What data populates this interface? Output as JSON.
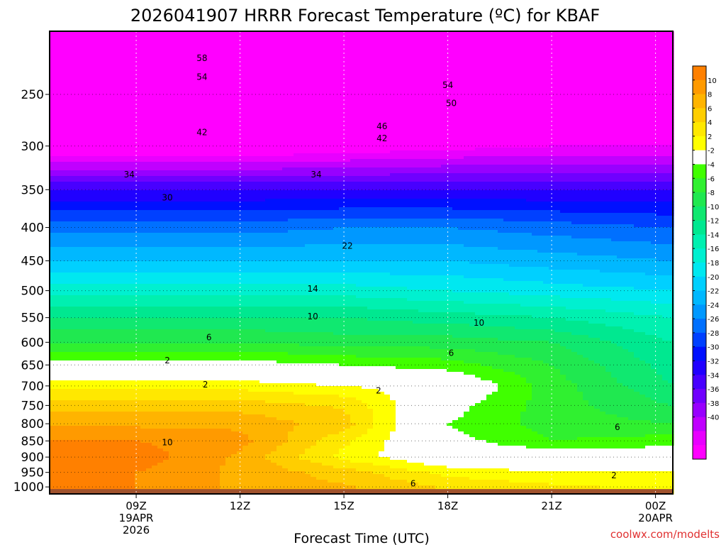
{
  "chart_data": {
    "type": "heatmap",
    "title": "2026041907 HRRR Forecast Temperature (ºC) for KBAF",
    "xlabel": "Forecast Time (UTC)",
    "ylabel": "",
    "credit": "coolwx.com/modelts",
    "x_range_hours": [
      6.5,
      24.5
    ],
    "y_range_hpa": [
      200,
      1025
    ],
    "y_scale": "log-pressure",
    "y_ticks": [
      250,
      300,
      350,
      400,
      450,
      500,
      550,
      600,
      650,
      700,
      750,
      800,
      850,
      900,
      950,
      1000
    ],
    "x_ticks": [
      {
        "hour": 9,
        "lines": [
          "09Z",
          "19APR",
          "2026"
        ]
      },
      {
        "hour": 12,
        "lines": [
          "12Z"
        ]
      },
      {
        "hour": 15,
        "lines": [
          "15Z"
        ]
      },
      {
        "hour": 18,
        "lines": [
          "18Z"
        ]
      },
      {
        "hour": 21,
        "lines": [
          "21Z"
        ]
      },
      {
        "hour": 24,
        "lines": [
          "00Z",
          "20APR"
        ]
      }
    ],
    "grid": "dotted",
    "colorbar": {
      "placement": "right",
      "labels": [
        "10",
        "8",
        "6",
        "4",
        "2",
        "-2",
        "-4",
        "-6",
        "-8",
        "-10",
        "-12",
        "-14",
        "-16",
        "-18",
        "-20",
        "-22",
        "-24",
        "-26",
        "-28",
        "-30",
        "-32",
        "-34",
        "-36",
        "-38",
        "-40"
      ],
      "colors": [
        "#ff8000",
        "#ff9a00",
        "#ffb400",
        "#ffce00",
        "#ffe800",
        "#ffff00",
        "#ffffff",
        "#40ff00",
        "#30f030",
        "#20e850",
        "#10e870",
        "#00e890",
        "#00f0b0",
        "#00f0d0",
        "#00e8f0",
        "#00d0ff",
        "#00b8ff",
        "#0098ff",
        "#0070ff",
        "#0040ff",
        "#0010ff",
        "#2000ff",
        "#4800ff",
        "#7000ff",
        "#9800ff",
        "#c000ff",
        "#e800ff",
        "#ff00ff"
      ]
    },
    "temperature_profiles_c": [
      {
        "hour": 6.5,
        "levels": [
          [
            220,
            -60
          ],
          [
            250,
            -56
          ],
          [
            300,
            -45
          ],
          [
            350,
            -32
          ],
          [
            400,
            -25
          ],
          [
            450,
            -20
          ],
          [
            500,
            -15
          ],
          [
            550,
            -10
          ],
          [
            600,
            -6
          ],
          [
            650,
            -1
          ],
          [
            700,
            3
          ],
          [
            750,
            6
          ],
          [
            800,
            8
          ],
          [
            850,
            10
          ],
          [
            900,
            11
          ],
          [
            950,
            10
          ],
          [
            1000,
            10
          ]
        ]
      },
      {
        "hour": 9,
        "levels": [
          [
            220,
            -60
          ],
          [
            250,
            -56
          ],
          [
            300,
            -45
          ],
          [
            350,
            -32
          ],
          [
            400,
            -25
          ],
          [
            450,
            -20
          ],
          [
            500,
            -15
          ],
          [
            550,
            -10
          ],
          [
            600,
            -6
          ],
          [
            650,
            -1
          ],
          [
            700,
            3
          ],
          [
            750,
            6
          ],
          [
            800,
            8
          ],
          [
            850,
            10
          ],
          [
            900,
            11
          ],
          [
            950,
            10
          ],
          [
            1000,
            10
          ]
        ]
      },
      {
        "hour": 12,
        "levels": [
          [
            220,
            -60
          ],
          [
            250,
            -55
          ],
          [
            300,
            -45
          ],
          [
            350,
            -32
          ],
          [
            400,
            -25
          ],
          [
            450,
            -20
          ],
          [
            500,
            -15
          ],
          [
            550,
            -10
          ],
          [
            600,
            -6
          ],
          [
            650,
            -1
          ],
          [
            700,
            3
          ],
          [
            750,
            6
          ],
          [
            800,
            8
          ],
          [
            850,
            9
          ],
          [
            900,
            8
          ],
          [
            950,
            8
          ],
          [
            1000,
            8
          ]
        ]
      },
      {
        "hour": 15,
        "levels": [
          [
            220,
            -60
          ],
          [
            250,
            -55
          ],
          [
            300,
            -44
          ],
          [
            350,
            -32
          ],
          [
            400,
            -24
          ],
          [
            450,
            -20
          ],
          [
            500,
            -15
          ],
          [
            550,
            -10
          ],
          [
            600,
            -7
          ],
          [
            650,
            -2
          ],
          [
            700,
            2
          ],
          [
            750,
            5
          ],
          [
            800,
            6
          ],
          [
            850,
            4
          ],
          [
            900,
            3
          ],
          [
            950,
            6
          ],
          [
            1000,
            7
          ]
        ]
      },
      {
        "hour": 18,
        "levels": [
          [
            220,
            -60
          ],
          [
            250,
            -54
          ],
          [
            300,
            -43
          ],
          [
            350,
            -32
          ],
          [
            400,
            -24
          ],
          [
            450,
            -20
          ],
          [
            500,
            -16
          ],
          [
            550,
            -11
          ],
          [
            600,
            -7
          ],
          [
            650,
            -3
          ],
          [
            700,
            1
          ],
          [
            750,
            -1
          ],
          [
            800,
            -2
          ],
          [
            850,
            -1
          ],
          [
            900,
            0
          ],
          [
            950,
            3
          ],
          [
            1000,
            5
          ]
        ]
      },
      {
        "hour": 21,
        "levels": [
          [
            220,
            -60
          ],
          [
            250,
            -53
          ],
          [
            300,
            -42
          ],
          [
            350,
            -32
          ],
          [
            400,
            -25
          ],
          [
            450,
            -21
          ],
          [
            500,
            -17
          ],
          [
            550,
            -12
          ],
          [
            600,
            -8
          ],
          [
            650,
            -6
          ],
          [
            700,
            -5
          ],
          [
            750,
            -5
          ],
          [
            800,
            -5
          ],
          [
            850,
            -4
          ],
          [
            900,
            0
          ],
          [
            950,
            2
          ],
          [
            1000,
            4
          ]
        ]
      },
      {
        "hour": 24.5,
        "levels": [
          [
            220,
            -60
          ],
          [
            250,
            -52
          ],
          [
            300,
            -42
          ],
          [
            350,
            -32
          ],
          [
            400,
            -26
          ],
          [
            450,
            -22
          ],
          [
            500,
            -18
          ],
          [
            550,
            -14
          ],
          [
            600,
            -12
          ],
          [
            650,
            -11
          ],
          [
            700,
            -10
          ],
          [
            750,
            -8
          ],
          [
            800,
            -6
          ],
          [
            850,
            -3
          ],
          [
            900,
            0
          ],
          [
            950,
            2
          ],
          [
            1000,
            3
          ]
        ]
      }
    ],
    "contour_labels": [
      {
        "text": "58",
        "hour": 10.9,
        "p": 220
      },
      {
        "text": "54",
        "hour": 10.9,
        "p": 235
      },
      {
        "text": "54",
        "hour": 18.0,
        "p": 242
      },
      {
        "text": "50",
        "hour": 18.1,
        "p": 258
      },
      {
        "text": "46",
        "hour": 16.1,
        "p": 280
      },
      {
        "text": "42",
        "hour": 16.1,
        "p": 292
      },
      {
        "text": "42",
        "hour": 10.9,
        "p": 286
      },
      {
        "text": "34",
        "hour": 8.8,
        "p": 332
      },
      {
        "text": "34",
        "hour": 14.2,
        "p": 332
      },
      {
        "text": "30",
        "hour": 9.9,
        "p": 360
      },
      {
        "text": "22",
        "hour": 15.1,
        "p": 427
      },
      {
        "text": "14",
        "hour": 14.1,
        "p": 497
      },
      {
        "text": "10",
        "hour": 14.1,
        "p": 548
      },
      {
        "text": "10",
        "hour": 18.9,
        "p": 560
      },
      {
        "text": "6",
        "hour": 11.1,
        "p": 590
      },
      {
        "text": "6",
        "hour": 18.1,
        "p": 623
      },
      {
        "text": "2",
        "hour": 9.9,
        "p": 640
      },
      {
        "text": "2",
        "hour": 11.0,
        "p": 697
      },
      {
        "text": "2",
        "hour": 16.0,
        "p": 712
      },
      {
        "text": "10",
        "hour": 9.9,
        "p": 855
      },
      {
        "text": "6",
        "hour": 17.0,
        "p": 988
      },
      {
        "text": "2",
        "hour": 22.8,
        "p": 960
      },
      {
        "text": "6",
        "hour": 22.9,
        "p": 810
      }
    ]
  }
}
